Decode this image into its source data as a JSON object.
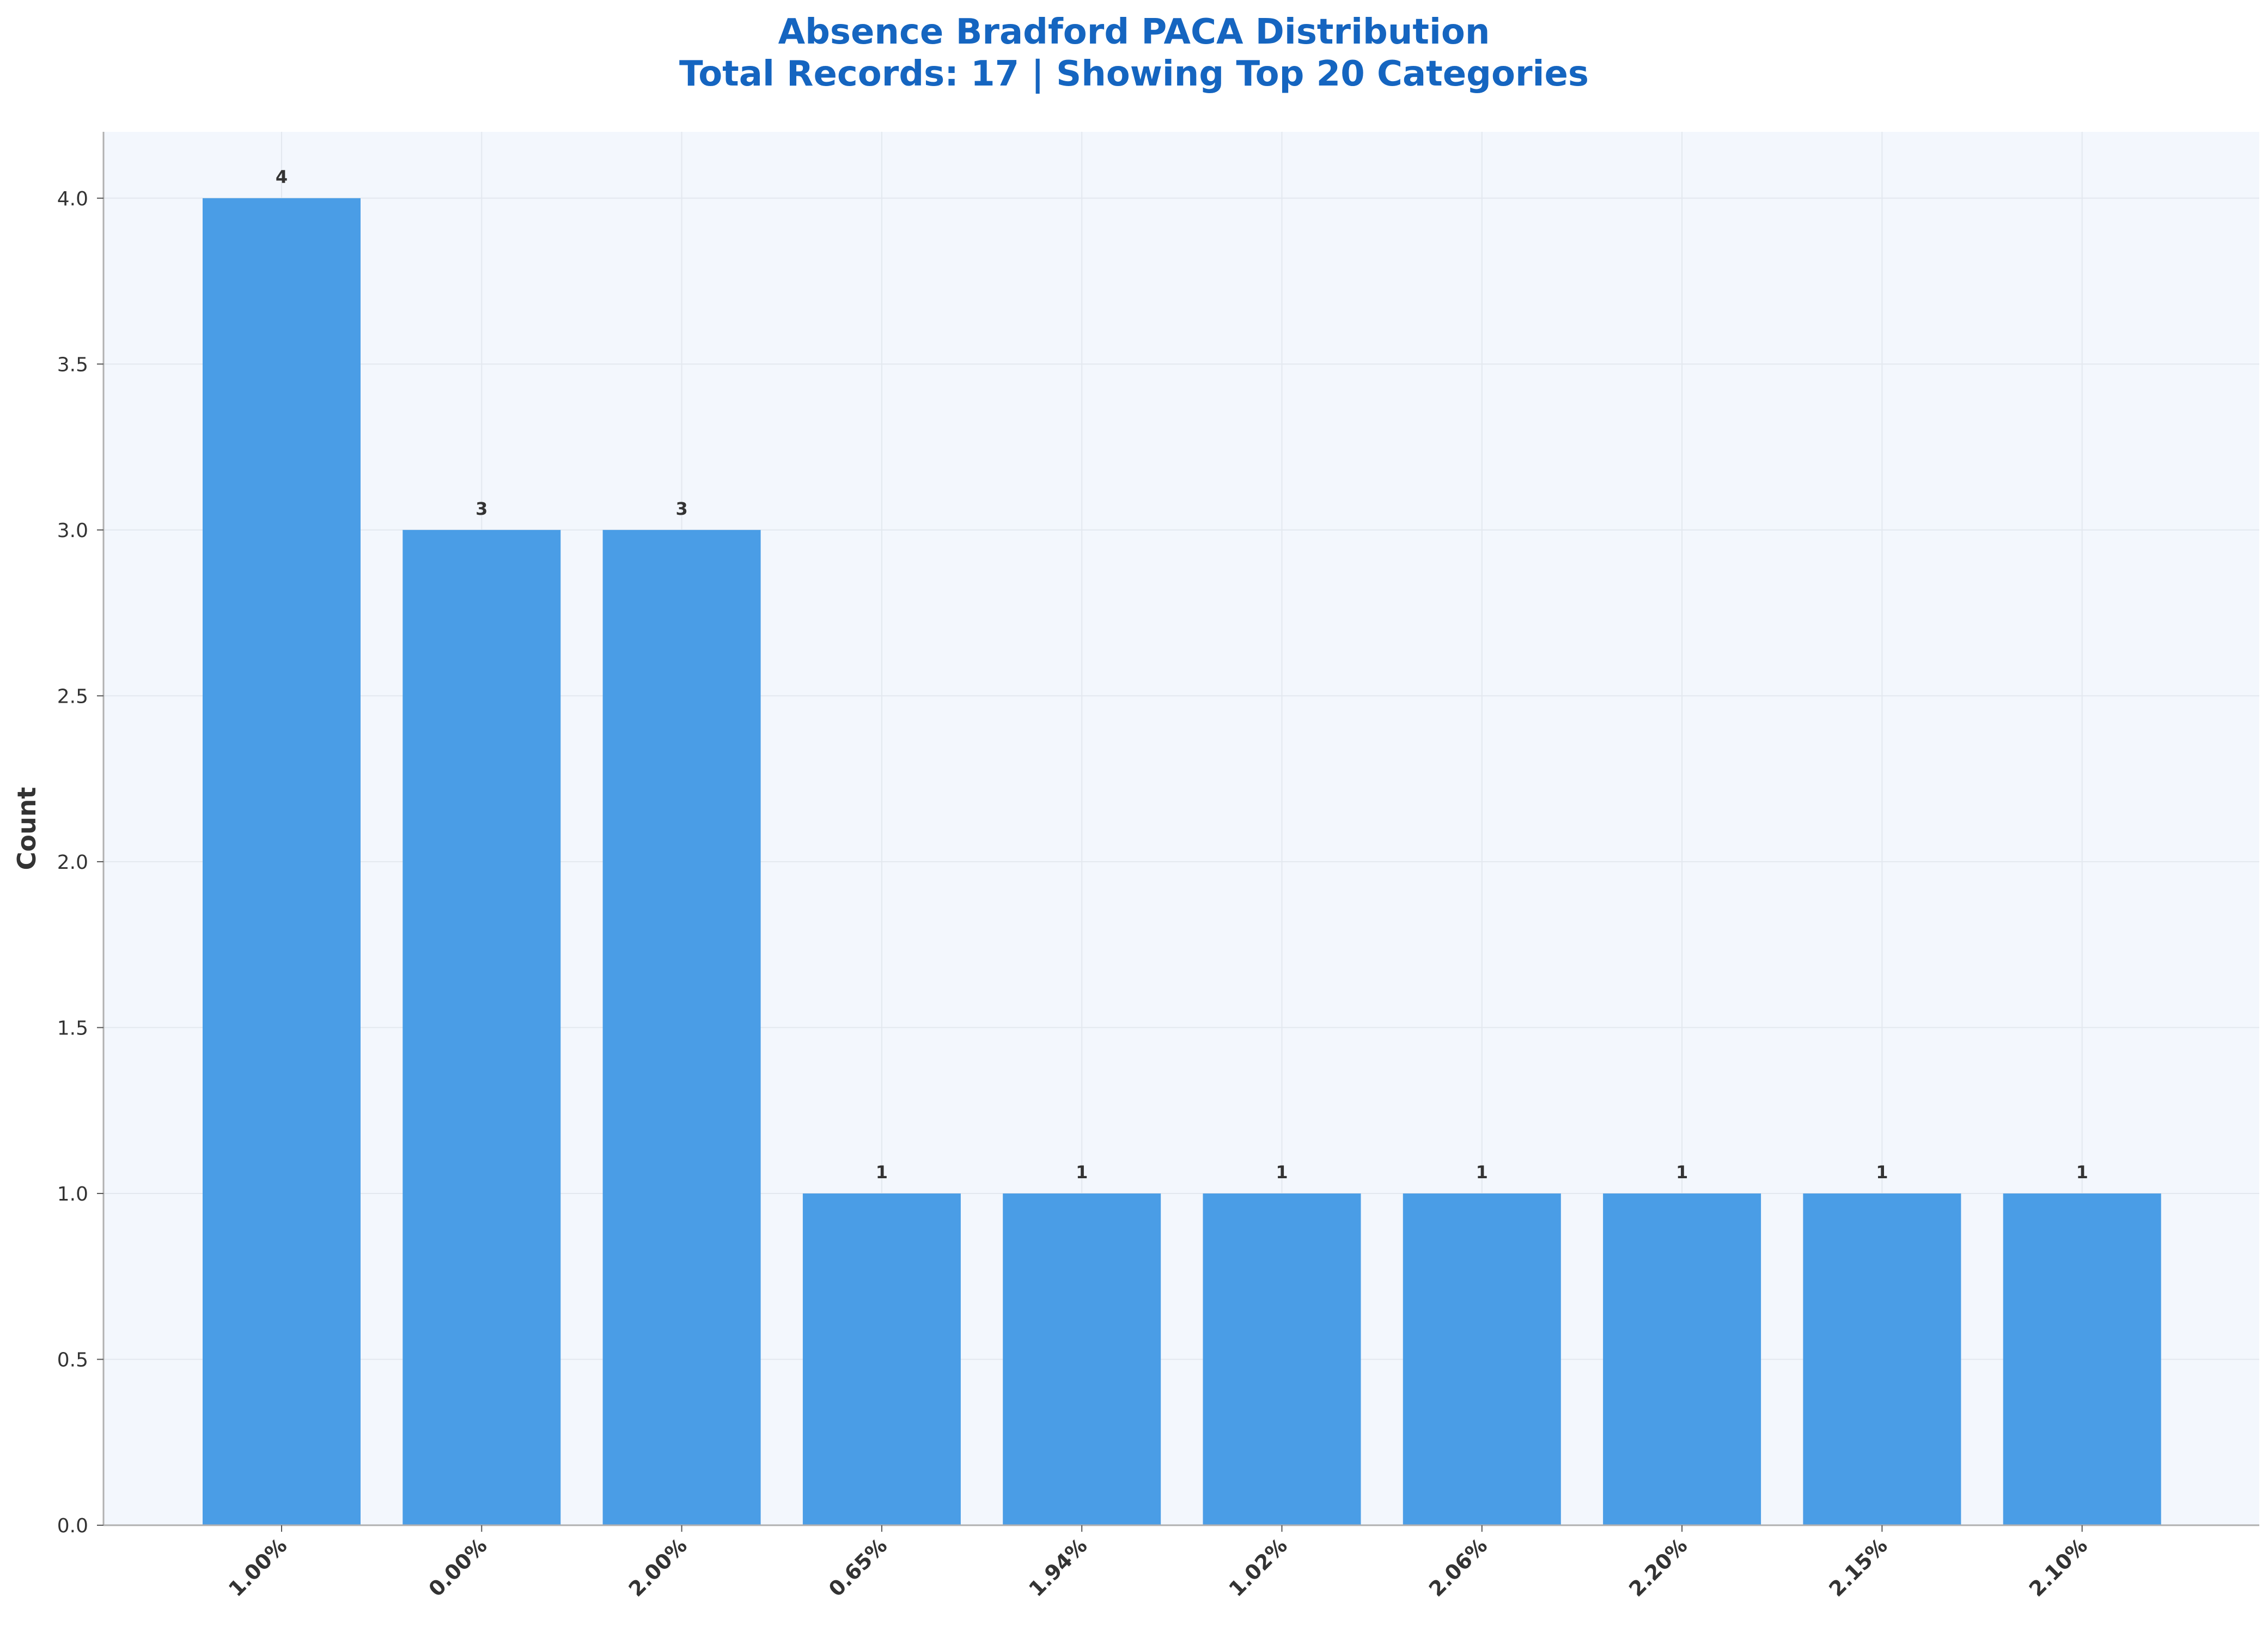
{
  "chart_data": {
    "type": "bar",
    "title": "Absence Bradford PACA Distribution",
    "subtitle": "Total Records: 17 | Showing Top 20 Categories",
    "xlabel": "",
    "ylabel": "Count",
    "categories": [
      "1.00%",
      "0.00%",
      "2.00%",
      "0.65%",
      "1.94%",
      "1.02%",
      "2.06%",
      "2.20%",
      "2.15%",
      "2.10%"
    ],
    "values": [
      4,
      3,
      3,
      1,
      1,
      1,
      1,
      1,
      1,
      1
    ],
    "data_labels": [
      "4",
      "3",
      "3",
      "1",
      "1",
      "1",
      "1",
      "1",
      "1",
      "1"
    ],
    "ylim": [
      0,
      4.2
    ],
    "yticks": [
      "0.0",
      "0.5",
      "1.0",
      "1.5",
      "2.0",
      "2.5",
      "3.0",
      "3.5",
      "4.0"
    ],
    "grid": true,
    "legend": "none"
  },
  "colors": {
    "title": "#1565C0",
    "bar": "#4A9DE6",
    "plot_background": "#F3F7FD",
    "grid": "#E3E8EF",
    "axis": "#B0B0B0"
  }
}
